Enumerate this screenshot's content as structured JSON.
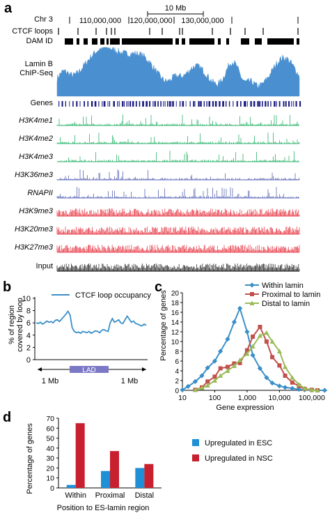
{
  "panel_a": {
    "letter": "a",
    "chr_label": "Chr 3",
    "scale_label": "10 Mb",
    "coords": [
      "110,000,000",
      "120,000,000",
      "130,000,000"
    ],
    "ctcf_label": "CTCF loops",
    "dam_label": "DAM ID",
    "lamin_label": [
      "Lamin B",
      "ChIP-Seq"
    ],
    "genes_label": "Genes",
    "input_label": "Input",
    "tracks": [
      {
        "name": "H3K4me1",
        "color": "#2db36b"
      },
      {
        "name": "H3K4me2",
        "color": "#2db36b"
      },
      {
        "name": "H3K4me3",
        "color": "#2db36b"
      },
      {
        "name": "H3K36me3",
        "color": "#5a66b5"
      },
      {
        "name": "RNAPII",
        "color": "#5a66b5"
      },
      {
        "name": "H3K9me3",
        "color": "#e8434f"
      },
      {
        "name": "H3K20me3",
        "color": "#e8434f"
      },
      {
        "name": "H3K27me3",
        "color": "#e8434f"
      }
    ],
    "colors": {
      "lamin": "#4a90d0",
      "genes": "#1a1a80",
      "input": "#333333"
    }
  },
  "chart_data": [
    {
      "panel": "b",
      "type": "line",
      "ylabel": "% of region covered by loop",
      "ylabel_lines": [
        "% of region",
        "covered by loop"
      ],
      "ylim": [
        0,
        10
      ],
      "yticks": [
        0,
        2,
        4,
        6,
        8,
        10
      ],
      "legend": "top",
      "series": [
        {
          "name": "CTCF loop occupancy",
          "color": "#3a8fc8",
          "values": [
            6.0,
            5.9,
            6.1,
            5.8,
            6.0,
            6.3,
            6.1,
            6.2,
            6.0,
            6.4,
            6.5,
            6.2,
            6.6,
            7.0,
            7.4,
            7.9,
            7.3,
            5.2,
            4.6,
            4.4,
            4.5,
            4.3,
            4.6,
            4.5,
            4.4,
            4.6,
            4.3,
            4.5,
            4.7,
            4.6,
            4.4,
            4.8,
            4.9,
            4.7,
            4.6,
            6.0,
            6.7,
            6.1,
            6.3,
            6.5,
            6.0,
            5.9,
            6.5,
            7.1,
            6.6,
            6.1,
            6.3,
            5.9,
            5.8,
            5.6,
            5.5,
            5.8,
            5.6
          ]
        }
      ],
      "region_label": "LAD",
      "region_color": "#7b78c6",
      "bottom_left": "1 Mb",
      "bottom_right": "1 Mb"
    },
    {
      "panel": "c",
      "type": "line",
      "xlabel": "Gene expression",
      "ylabel": "Percentage of genes",
      "xscale": "log",
      "xlim": [
        10,
        300000
      ],
      "xticks": [
        10,
        100,
        1000,
        10000,
        100000
      ],
      "xtick_labels": [
        "10",
        "100",
        "1,000",
        "10,000",
        "100,000"
      ],
      "ylim": [
        0,
        20
      ],
      "yticks": [
        0,
        2,
        4,
        6,
        8,
        10,
        12,
        14,
        16,
        18,
        20
      ],
      "legend": "top-right",
      "series": [
        {
          "name": "Within lamin",
          "color": "#3a8fc8",
          "marker": "diamond",
          "x": [
            10,
            15,
            25,
            40,
            60,
            100,
            150,
            250,
            400,
            600,
            1000,
            1500,
            2500,
            4000,
            6000,
            10000,
            15000,
            25000,
            40000,
            60000,
            100000,
            150000,
            250000
          ],
          "y": [
            0.1,
            0.8,
            1.8,
            3.0,
            4.6,
            6.0,
            8.0,
            10.5,
            14.0,
            16.8,
            12.0,
            7.2,
            4.5,
            2.6,
            1.5,
            0.9,
            0.6,
            0.4,
            0.2,
            0.1,
            0.1,
            0.0,
            0.0
          ]
        },
        {
          "name": "Proximal to lamin",
          "color": "#c0504d",
          "marker": "square",
          "x": [
            25,
            40,
            60,
            100,
            150,
            250,
            400,
            600,
            1000,
            1500,
            2500,
            4000,
            6000,
            10000,
            15000,
            25000,
            40000,
            60000,
            100000,
            150000
          ],
          "y": [
            0.1,
            0.6,
            1.8,
            2.8,
            4.5,
            4.8,
            5.5,
            5.6,
            8.2,
            11.0,
            13.0,
            10.0,
            6.8,
            5.1,
            3.0,
            1.6,
            0.9,
            0.3,
            0.1,
            0.0
          ]
        },
        {
          "name": "Distal to lamin",
          "color": "#9bbb59",
          "marker": "triangle",
          "x": [
            25,
            40,
            60,
            100,
            150,
            250,
            400,
            600,
            1000,
            1500,
            2500,
            4000,
            6000,
            10000,
            15000,
            25000,
            40000,
            60000,
            100000,
            150000
          ],
          "y": [
            0.1,
            0.5,
            1.0,
            2.0,
            3.0,
            4.0,
            5.0,
            6.2,
            7.5,
            9.0,
            11.2,
            11.8,
            10.0,
            8.0,
            4.8,
            2.6,
            1.2,
            0.4,
            0.1,
            0.0
          ]
        }
      ]
    },
    {
      "panel": "d",
      "type": "bar",
      "xlabel": "Position to ES-lamin region",
      "ylabel": "Percentage of genes",
      "categories": [
        "Within",
        "Proximal",
        "Distal"
      ],
      "ylim": [
        0,
        70
      ],
      "yticks": [
        0,
        10,
        20,
        30,
        40,
        50,
        60,
        70
      ],
      "legend": "right",
      "series": [
        {
          "name": "Upregulated in ESC",
          "color": "#1f8fd6",
          "values": [
            3,
            17,
            20
          ]
        },
        {
          "name": "Upregulated in NSC",
          "color": "#c8202f",
          "values": [
            65,
            37,
            24
          ]
        }
      ]
    }
  ],
  "panel_labels": {
    "b": "b",
    "c": "c",
    "d": "d"
  }
}
